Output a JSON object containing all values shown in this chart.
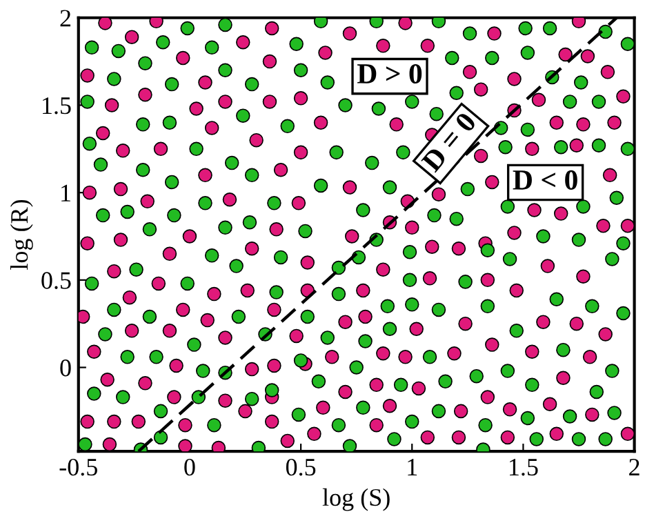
{
  "chart_data": {
    "type": "scatter",
    "xlabel": "log (S)",
    "ylabel": "log (R)",
    "xlim": [
      -0.5,
      2
    ],
    "ylim": [
      -0.48,
      2
    ],
    "xticks": [
      -0.5,
      0,
      0.5,
      1,
      1.5,
      2
    ],
    "yticks": [
      0,
      0.5,
      1,
      1.5,
      2
    ],
    "grid": false,
    "marker": "circle",
    "annotations": [
      "D > 0",
      "D = 0",
      "D < 0"
    ],
    "series": [
      {
        "color": "#e0197a",
        "x": [
          -0.38,
          -0.15,
          -0.26,
          -0.46,
          -0.03,
          0.24,
          0.37,
          -0.35,
          -0.2,
          0.07,
          0.36,
          0.61,
          0.03,
          0.16,
          0.36,
          0.5,
          -0.39,
          0.1,
          0.3,
          0.59,
          -0.3,
          -0.13,
          0.5,
          0.07,
          0.41,
          -0.45,
          -0.31,
          -0.19,
          0.18,
          0.49,
          -0.46,
          -0.31,
          0.0,
          0.28,
          0.39,
          -0.09,
          -0.34,
          -0.14,
          -0.27,
          -0.48,
          -0.03,
          0.11,
          0.26,
          0.08,
          0.53,
          0.53,
          -0.43,
          -0.26,
          -0.09,
          0.16,
          0.38,
          0.48,
          -0.37,
          -0.2,
          -0.06,
          0.28,
          0.38,
          0.52,
          -0.46,
          -0.34,
          -0.23,
          -0.07,
          0.16,
          0.37,
          -0.02,
          0.25,
          0.37,
          -0.36,
          -0.02,
          0.13,
          0.44,
          0.56,
          0.6,
          0.72,
          0.97,
          0.87,
          1.07,
          1.37,
          1.75,
          1.26,
          1.31,
          1.46,
          1.69,
          1.79,
          1.88,
          1.57,
          1.46,
          1.65,
          1.77,
          1.91,
          1.95,
          0.93,
          1.09,
          1.31,
          1.54,
          1.74,
          0.72,
          0.98,
          1.12,
          1.36,
          1.89,
          1.55,
          1.67,
          1.86,
          1.97,
          0.9,
          1.0,
          0.73,
          1.09,
          1.21,
          1.33,
          1.46,
          0.87,
          1.08,
          1.34,
          1.47,
          1.61,
          1.77,
          0.78,
          0.7,
          0.79,
          1.02,
          1.24,
          1.36,
          1.59,
          1.74,
          1.87,
          0.64,
          0.87,
          0.97,
          1.19,
          1.54,
          1.8,
          0.84,
          1.03,
          0.7,
          1.68,
          0.9,
          1.22,
          1.34,
          1.44,
          1.62,
          1.81,
          0.84,
          1.07,
          1.21,
          1.43,
          1.65,
          1.97
        ],
        "values": [
          1.97,
          1.98,
          1.89,
          1.67,
          1.77,
          1.86,
          1.94,
          1.5,
          1.56,
          1.63,
          1.75,
          1.8,
          1.48,
          1.52,
          1.52,
          1.54,
          1.34,
          1.37,
          1.3,
          1.4,
          1.24,
          1.25,
          1.23,
          1.1,
          1.13,
          1.0,
          1.02,
          0.95,
          0.96,
          0.94,
          0.71,
          0.73,
          0.75,
          0.68,
          0.79,
          0.65,
          0.55,
          0.48,
          0.4,
          0.29,
          0.33,
          0.42,
          0.44,
          0.27,
          0.44,
          0.6,
          0.09,
          0.21,
          0.21,
          0.17,
          0.33,
          0.18,
          -0.07,
          -0.09,
          0.01,
          -0.01,
          0.01,
          0.02,
          -0.31,
          -0.31,
          -0.31,
          -0.17,
          -0.19,
          -0.17,
          -0.33,
          -0.25,
          -0.31,
          -0.44,
          -0.45,
          -0.46,
          -0.42,
          -0.38,
          -0.23,
          1.91,
          1.97,
          1.84,
          1.84,
          1.91,
          1.98,
          1.69,
          1.59,
          1.65,
          1.79,
          1.78,
          1.69,
          1.53,
          1.47,
          1.4,
          1.39,
          1.4,
          1.55,
          1.39,
          1.33,
          1.21,
          1.25,
          1.27,
          1.03,
          0.95,
          0.99,
          1.06,
          1.1,
          0.9,
          0.88,
          0.81,
          0.81,
          0.83,
          0.8,
          0.75,
          0.69,
          0.68,
          0.71,
          0.77,
          0.56,
          0.51,
          0.5,
          0.44,
          0.58,
          0.52,
          0.44,
          0.26,
          0.29,
          0.22,
          0.25,
          0.13,
          0.26,
          0.25,
          0.19,
          0.06,
          0.08,
          0.06,
          0.08,
          0.09,
          0.06,
          -0.1,
          -0.12,
          -0.14,
          -0.06,
          -0.22,
          -0.25,
          -0.17,
          -0.24,
          -0.21,
          -0.27,
          -0.33,
          -0.4,
          -0.4,
          -0.4,
          -0.38,
          -0.38
        ]
      },
      {
        "color": "#22bb22",
        "x": [
          -0.44,
          -0.32,
          -0.2,
          -0.12,
          -0.01,
          0.16,
          0.1,
          0.16,
          0.28,
          0.48,
          0.5,
          0.59,
          -0.34,
          -0.08,
          -0.46,
          -0.21,
          -0.09,
          0.24,
          0.44,
          -0.45,
          -0.4,
          -0.21,
          0.03,
          0.19,
          0.28,
          -0.08,
          0.59,
          0.07,
          0.38,
          -0.39,
          -0.28,
          -0.07,
          -0.18,
          0.16,
          0.27,
          0.52,
          0.1,
          0.41,
          0.21,
          -0.24,
          -0.44,
          -0.01,
          0.39,
          -0.34,
          -0.18,
          0.22,
          0.53,
          -0.38,
          0.02,
          0.34,
          0.62,
          -0.28,
          -0.15,
          0.06,
          0.16,
          0.5,
          0.58,
          -0.43,
          -0.3,
          -0.13,
          0.04,
          0.28,
          0.37,
          0.49,
          -0.47,
          -0.22,
          -0.13,
          0.11,
          0.31,
          0.84,
          1.12,
          1.26,
          1.51,
          1.62,
          1.87,
          1.97,
          1.18,
          1.36,
          1.52,
          0.62,
          1.2,
          1.63,
          1.76,
          0.7,
          0.85,
          1.0,
          1.11,
          1.71,
          1.84,
          1.4,
          1.52,
          1.42,
          1.67,
          1.84,
          1.97,
          0.66,
          0.82,
          0.96,
          0.9,
          1.25,
          1.43,
          1.77,
          1.92,
          0.78,
          1.1,
          1.2,
          1.59,
          1.75,
          0.84,
          0.76,
          0.99,
          1.44,
          1.9,
          1.95,
          0.67,
          0.99,
          1.24,
          1.34,
          0.67,
          0.89,
          1.0,
          1.12,
          1.34,
          1.65,
          1.81,
          1.95,
          0.79,
          0.9,
          1.47,
          1.68,
          1.08,
          0.75,
          0.95,
          1.15,
          1.29,
          1.43,
          1.54,
          1.9,
          0.78,
          1.12,
          1.0,
          1.33,
          1.52,
          1.71,
          1.83,
          1.91,
          0.67,
          0.72,
          0.92,
          1.32,
          1.56,
          1.75,
          1.87
        ],
        "values": [
          1.83,
          1.81,
          1.74,
          1.86,
          1.94,
          1.96,
          1.83,
          1.7,
          1.62,
          1.85,
          1.7,
          1.98,
          1.65,
          1.62,
          1.52,
          1.39,
          1.4,
          1.44,
          1.38,
          1.28,
          1.16,
          1.13,
          1.25,
          1.17,
          1.1,
          1.06,
          1.04,
          0.94,
          0.94,
          0.87,
          0.89,
          0.87,
          0.79,
          0.8,
          0.83,
          0.78,
          0.64,
          0.63,
          0.58,
          0.56,
          0.48,
          0.48,
          0.43,
          0.33,
          0.29,
          0.29,
          0.29,
          0.19,
          0.13,
          0.19,
          0.17,
          0.06,
          0.06,
          -0.02,
          -0.03,
          0.04,
          -0.08,
          -0.15,
          -0.17,
          -0.25,
          -0.17,
          -0.18,
          -0.13,
          -0.27,
          -0.44,
          -0.47,
          -0.4,
          -0.33,
          -0.46,
          1.98,
          1.98,
          1.91,
          1.94,
          1.94,
          1.92,
          1.85,
          1.77,
          1.77,
          1.8,
          1.63,
          1.57,
          1.66,
          1.63,
          1.5,
          1.48,
          1.52,
          1.45,
          1.52,
          1.52,
          1.37,
          1.36,
          1.26,
          1.26,
          1.27,
          1.25,
          1.23,
          1.17,
          1.23,
          1.03,
          1.02,
          0.92,
          0.92,
          0.97,
          0.9,
          0.87,
          0.85,
          0.75,
          0.73,
          0.73,
          0.63,
          0.66,
          0.62,
          0.62,
          0.71,
          0.57,
          0.5,
          0.49,
          0.67,
          0.42,
          0.35,
          0.36,
          0.33,
          0.35,
          0.39,
          0.35,
          0.31,
          0.15,
          0.22,
          0.21,
          0.1,
          0.06,
          0.0,
          -0.1,
          -0.08,
          -0.05,
          -0.02,
          -0.1,
          -0.02,
          -0.23,
          -0.25,
          -0.31,
          -0.33,
          -0.29,
          -0.28,
          -0.14,
          -0.26,
          -0.33,
          -0.45,
          -0.41,
          -0.47,
          -0.41,
          -0.41,
          -0.41
        ]
      },
      {
        "type": "line",
        "color": "#000000",
        "line_style": "dashed",
        "marker": "none",
        "x": [
          -0.23,
          1.92
        ],
        "values": [
          -0.48,
          2
        ]
      }
    ]
  }
}
